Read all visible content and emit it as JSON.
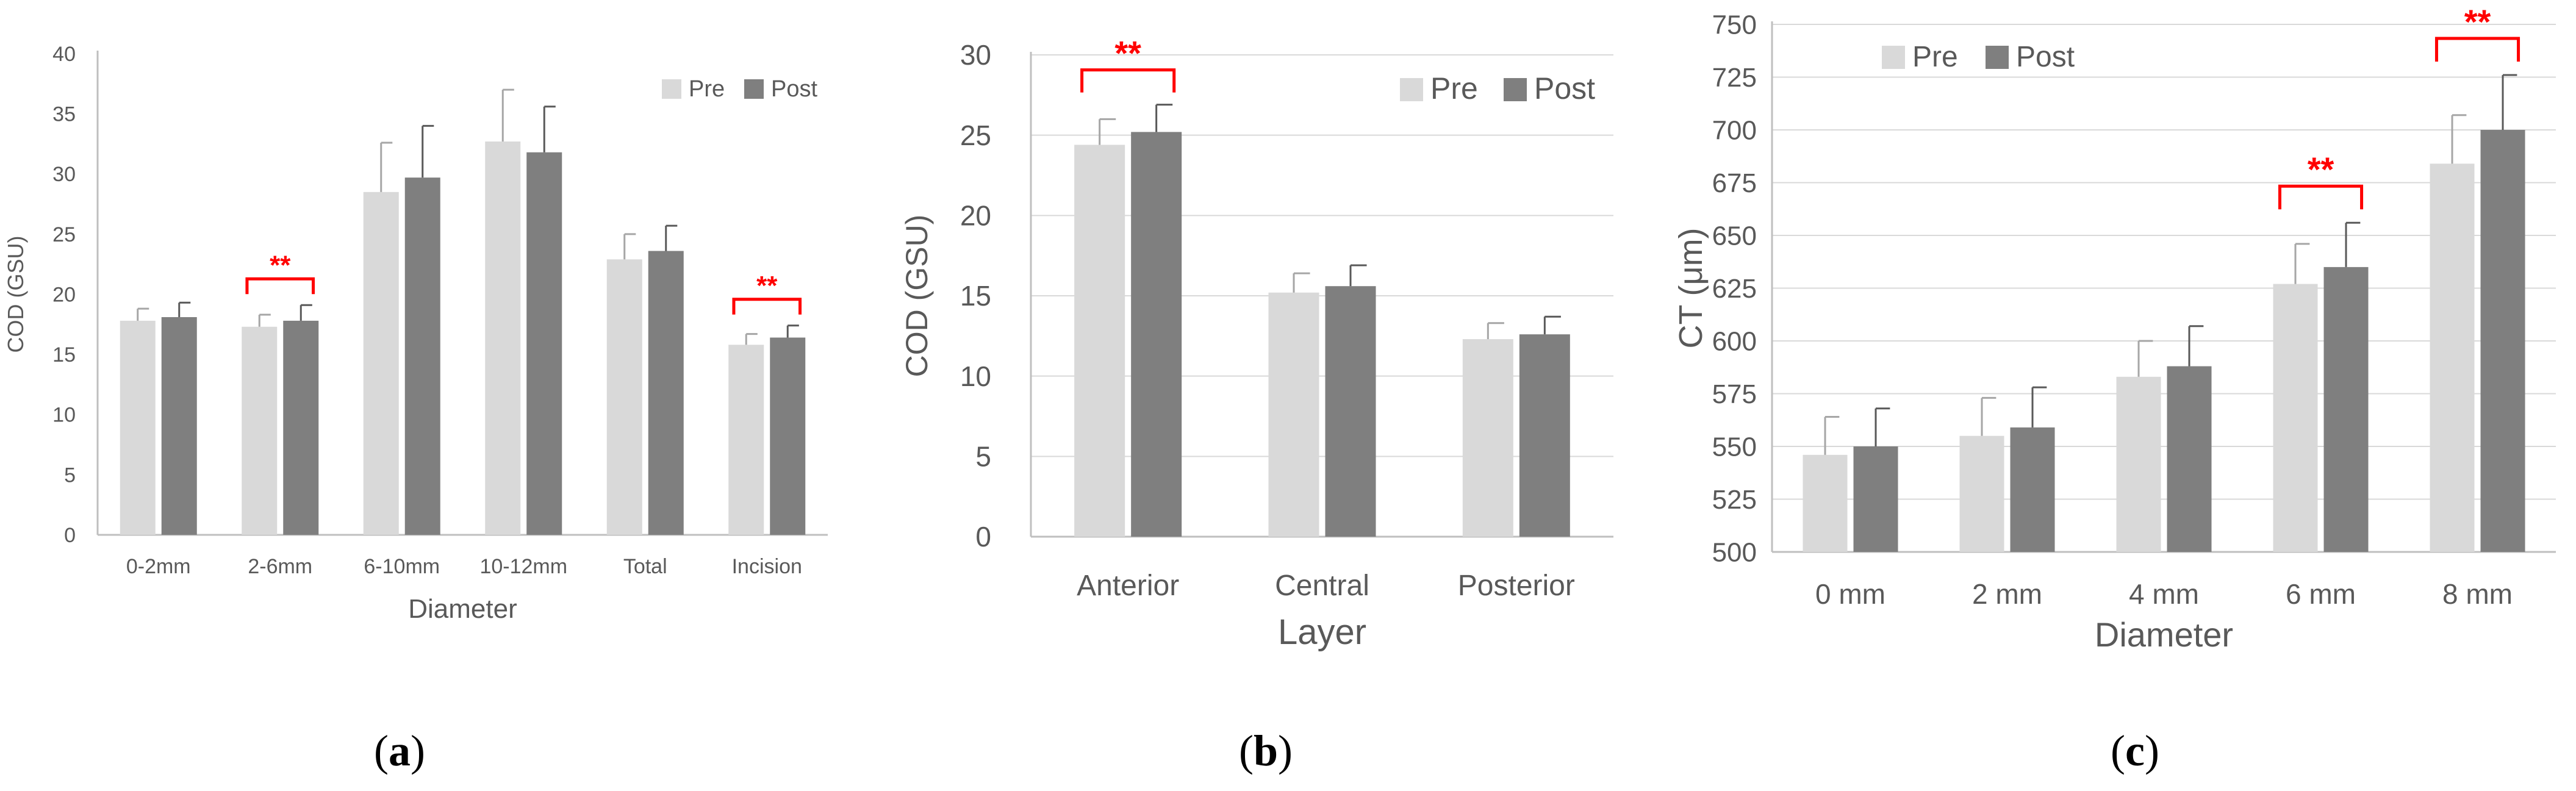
{
  "colors": {
    "pre": "#d9d9d9",
    "post": "#7f7f7f",
    "axis": "#bfbfbf",
    "grid": "#d9d9d9",
    "sig": "#ff0000",
    "text": "#595959"
  },
  "chart_data": [
    {
      "type": "bar",
      "panel_label": "a",
      "title": "",
      "xlabel": "Diameter",
      "ylabel": "COD (GSU)",
      "ylim": [
        0,
        40
      ],
      "yticks": [
        "0",
        "5",
        "10",
        "15",
        "20",
        "25",
        "30",
        "35",
        "40"
      ],
      "categories": [
        "0-2mm",
        "2-6mm",
        "6-10mm",
        "10-12mm",
        "Total",
        "Incision"
      ],
      "series": [
        {
          "name": "Pre",
          "values": [
            17.8,
            17.3,
            28.5,
            32.7,
            22.9,
            15.8
          ],
          "errors": [
            1.0,
            1.0,
            4.1,
            4.3,
            2.1,
            0.9
          ]
        },
        {
          "name": "Post",
          "values": [
            18.1,
            17.8,
            29.7,
            31.8,
            23.6,
            16.4
          ],
          "errors": [
            1.2,
            1.3,
            4.3,
            3.8,
            2.1,
            1.0
          ]
        }
      ],
      "significance": [
        {
          "category_index": 1,
          "label": "**"
        },
        {
          "category_index": 5,
          "label": "**"
        }
      ],
      "legend": "top-right",
      "grid": false
    },
    {
      "type": "bar",
      "panel_label": "b",
      "title": "",
      "xlabel": "Layer",
      "ylabel": "COD (GSU)",
      "ylim": [
        0,
        30
      ],
      "yticks": [
        "0",
        "5",
        "10",
        "15",
        "20",
        "25",
        "30"
      ],
      "categories": [
        "Anterior",
        "Central",
        "Posterior"
      ],
      "series": [
        {
          "name": "Pre",
          "values": [
            24.4,
            15.2,
            12.3
          ],
          "errors": [
            1.6,
            1.2,
            1.0
          ]
        },
        {
          "name": "Post",
          "values": [
            25.2,
            15.6,
            12.6
          ],
          "errors": [
            1.7,
            1.3,
            1.1
          ]
        }
      ],
      "significance": [
        {
          "category_index": 0,
          "label": "**"
        }
      ],
      "legend": "top-right",
      "grid": true
    },
    {
      "type": "bar",
      "panel_label": "c",
      "title": "",
      "xlabel": "Diameter",
      "ylabel": "CT (μm)",
      "ylim": [
        500,
        750
      ],
      "yticks": [
        "500",
        "525",
        "550",
        "575",
        "600",
        "625",
        "650",
        "675",
        "700",
        "725",
        "750"
      ],
      "categories": [
        "0 mm",
        "2 mm",
        "4 mm",
        "6 mm",
        "8 mm"
      ],
      "series": [
        {
          "name": "Pre",
          "values": [
            546,
            555,
            583,
            627,
            684
          ],
          "errors": [
            18,
            18,
            17,
            19,
            23
          ]
        },
        {
          "name": "Post",
          "values": [
            550,
            559,
            588,
            635,
            700
          ],
          "errors": [
            18,
            19,
            19,
            21,
            26
          ]
        }
      ],
      "significance": [
        {
          "category_index": 3,
          "label": "**"
        },
        {
          "category_index": 4,
          "label": "**"
        }
      ],
      "legend": "top-left",
      "grid": true
    }
  ]
}
